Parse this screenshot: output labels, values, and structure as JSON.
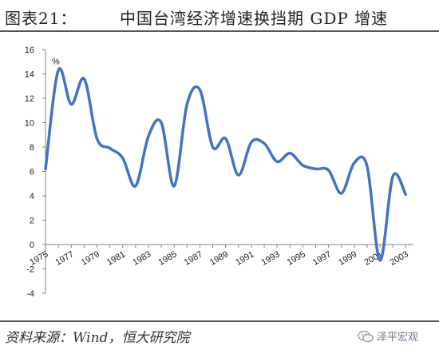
{
  "header": {
    "figure_label": "图表21：",
    "title": "中国台湾经济增速换挡期 GDP 增速"
  },
  "footer": {
    "source": "资料来源：Wind，恒大研究院",
    "brand": "泽平宏观",
    "brand_icon": "wechat-icon"
  },
  "colors": {
    "line": "#4472C4",
    "axis": "#808080",
    "rule": "#555555"
  },
  "chart_data": {
    "type": "line",
    "title": "",
    "xlabel": "",
    "ylabel": "%",
    "ylim": [
      -4,
      16
    ],
    "yticks": [
      -4,
      -2,
      0,
      2,
      4,
      6,
      8,
      10,
      12,
      14,
      16
    ],
    "xticks": [
      "1975",
      "1977",
      "1979",
      "1981",
      "1983",
      "1985",
      "1987",
      "1989",
      "1991",
      "1993",
      "1995",
      "1997",
      "1999",
      "2001",
      "2003"
    ],
    "grid": false,
    "legend": "none",
    "series": [
      {
        "x": [
          1975,
          1976,
          1977,
          1978,
          1979,
          1980,
          1981,
          1982,
          1983,
          1984,
          1985,
          1986,
          1987,
          1988,
          1989,
          1990,
          1991,
          1992,
          1993,
          1994,
          1995,
          1996,
          1997,
          1998,
          1999,
          2000,
          2001,
          2002,
          2003
        ],
        "values": [
          6.2,
          14.3,
          11.5,
          13.6,
          8.7,
          7.9,
          7.1,
          4.8,
          8.9,
          10.0,
          4.8,
          11.5,
          12.7,
          8.0,
          8.7,
          5.7,
          8.4,
          8.3,
          6.8,
          7.5,
          6.5,
          6.2,
          6.1,
          4.2,
          6.7,
          6.4,
          -1.3,
          5.6,
          4.1
        ]
      }
    ]
  }
}
